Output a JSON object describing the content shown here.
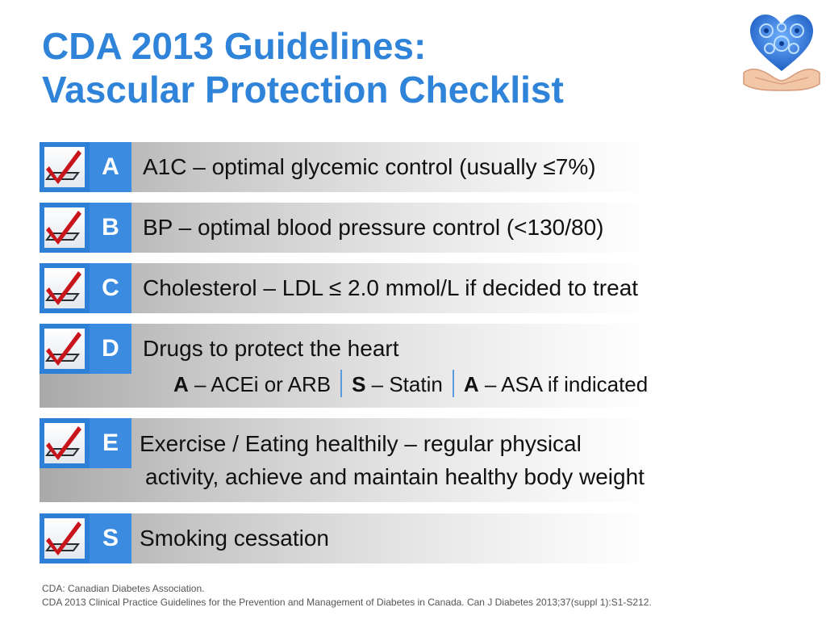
{
  "title": {
    "line1": "CDA 2013 Guidelines:",
    "line2": "Vascular Protection Checklist"
  },
  "logo": {
    "icon": "heart-of-gears-in-hands-icon",
    "accent": "#2f84d9"
  },
  "colors": {
    "title": "#2f84d9",
    "tile_dark": "#2e7fd6",
    "tile_letter": "#3b8be0",
    "check_red": "#c8141b"
  },
  "rows": [
    {
      "letter": "A",
      "text": "A1C – optimal glycemic control (usually ≤7%)"
    },
    {
      "letter": "B",
      "text": "BP – optimal blood pressure control (<130/80)"
    },
    {
      "letter": "C",
      "text": "Cholesterol – LDL ≤ 2.0 mmol/L if decided to treat"
    },
    {
      "letter": "D",
      "text": "Drugs to protect the heart",
      "sub": [
        {
          "key": "A",
          "text": " – ACEi or ARB"
        },
        {
          "key": "S",
          "text": " – Statin"
        },
        {
          "key": "A",
          "text": " – ASA if indicated"
        }
      ]
    },
    {
      "letter": "E",
      "text": "Exercise / Eating healthily – regular physical",
      "text2": "activity, achieve and maintain healthy body weight"
    },
    {
      "letter": "S",
      "text": "Smoking cessation"
    }
  ],
  "footer": {
    "line1": "CDA: Canadian Diabetes Association.",
    "line2": "CDA 2013 Clinical Practice Guidelines for the Prevention and Management of Diabetes in Canada. Can J Diabetes 2013;37(suppl 1):S1-S212."
  }
}
